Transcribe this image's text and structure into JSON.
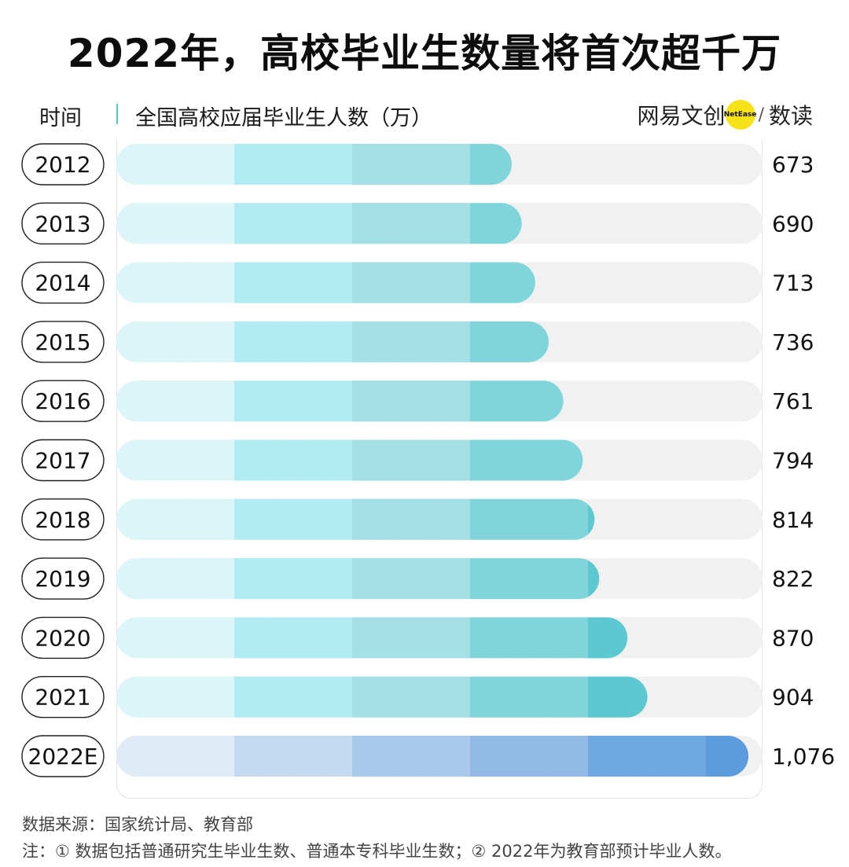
{
  "header": {
    "title": "2022年，高校毕业生数量将首次超千万",
    "col_time": "时间",
    "col_value": "全国高校应届毕业生人数（万）",
    "brand_left": "网易文创",
    "brand_dot": "NetEase",
    "brand_slash": "/",
    "brand_right": "数读"
  },
  "footer": {
    "source": "数据来源：国家统计局、教育部",
    "note": "注：① 数据包括普通研究生毕业生数、普通本专科毕业生数；② 2022年为教育部预计毕业人数。"
  },
  "chart_data": {
    "type": "bar",
    "orientation": "horizontal",
    "categories": [
      "2012",
      "2013",
      "2014",
      "2015",
      "2016",
      "2017",
      "2018",
      "2019",
      "2020",
      "2021",
      "2022E"
    ],
    "values": [
      673,
      690,
      713,
      736,
      761,
      794,
      814,
      822,
      870,
      904,
      1076
    ],
    "value_labels": [
      "673",
      "690",
      "713",
      "736",
      "761",
      "794",
      "814",
      "822",
      "870",
      "904",
      "1,076"
    ],
    "unit": "万",
    "xlim": [
      0,
      1100
    ],
    "colors": {
      "actual": [
        "#dcf5f8",
        "#b2ecf3",
        "#a3dfe4",
        "#7fd5da",
        "#5cc8cf",
        "#4fc0c8"
      ],
      "estimate": [
        "#e0ebf8",
        "#c3d9ef",
        "#a9c8ea",
        "#90b9e5",
        "#6fa8e1",
        "#5c9cdc"
      ],
      "track": "#f1f1f1"
    }
  }
}
